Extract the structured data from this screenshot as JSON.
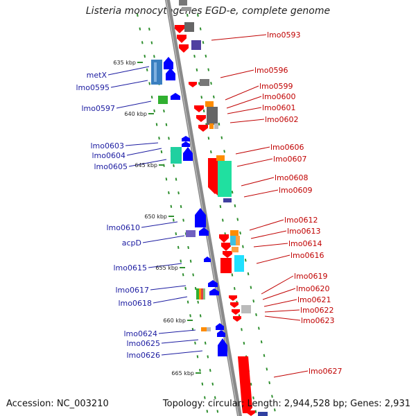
{
  "title": "Listeria monocytogenes EGD-e, complete genome",
  "footer": {
    "accession": "Accession: NC_003210",
    "summary": "Topology: circular; Length: 2,944,528 bp; Genes: 2,931"
  },
  "colors": {
    "forward": "#0000ff",
    "reverse": "#ff0000",
    "label_right": "#c00000",
    "label_left": "#1a1aa0",
    "backbone": "#808080",
    "tick": "#2f8f2f"
  },
  "scale_labels": [
    "635 kbp",
    "640 kbp",
    "645 kbp",
    "650 kbp",
    "655 kbp",
    "660 kbp",
    "665 kbp"
  ],
  "genes_right": [
    "lmo0593",
    "lmo0596",
    "lmo0599",
    "lmo0600",
    "lmo0601",
    "lmo0602",
    "lmo0606",
    "lmo0607",
    "lmo0608",
    "lmo0609",
    "lmo0612",
    "lmo0613",
    "lmo0614",
    "lmo0616",
    "lmo0619",
    "lmo0620",
    "lmo0621",
    "lmo0622",
    "lmo0623",
    "lmo0627"
  ],
  "genes_left": [
    "metX",
    "lmo0595",
    "lmo0597",
    "lmo0603",
    "lmo0604",
    "lmo0605",
    "lmo0610",
    "acpD",
    "lmo0615",
    "lmo0617",
    "lmo0618",
    "lmo0624",
    "lmo0625",
    "lmo0626"
  ]
}
